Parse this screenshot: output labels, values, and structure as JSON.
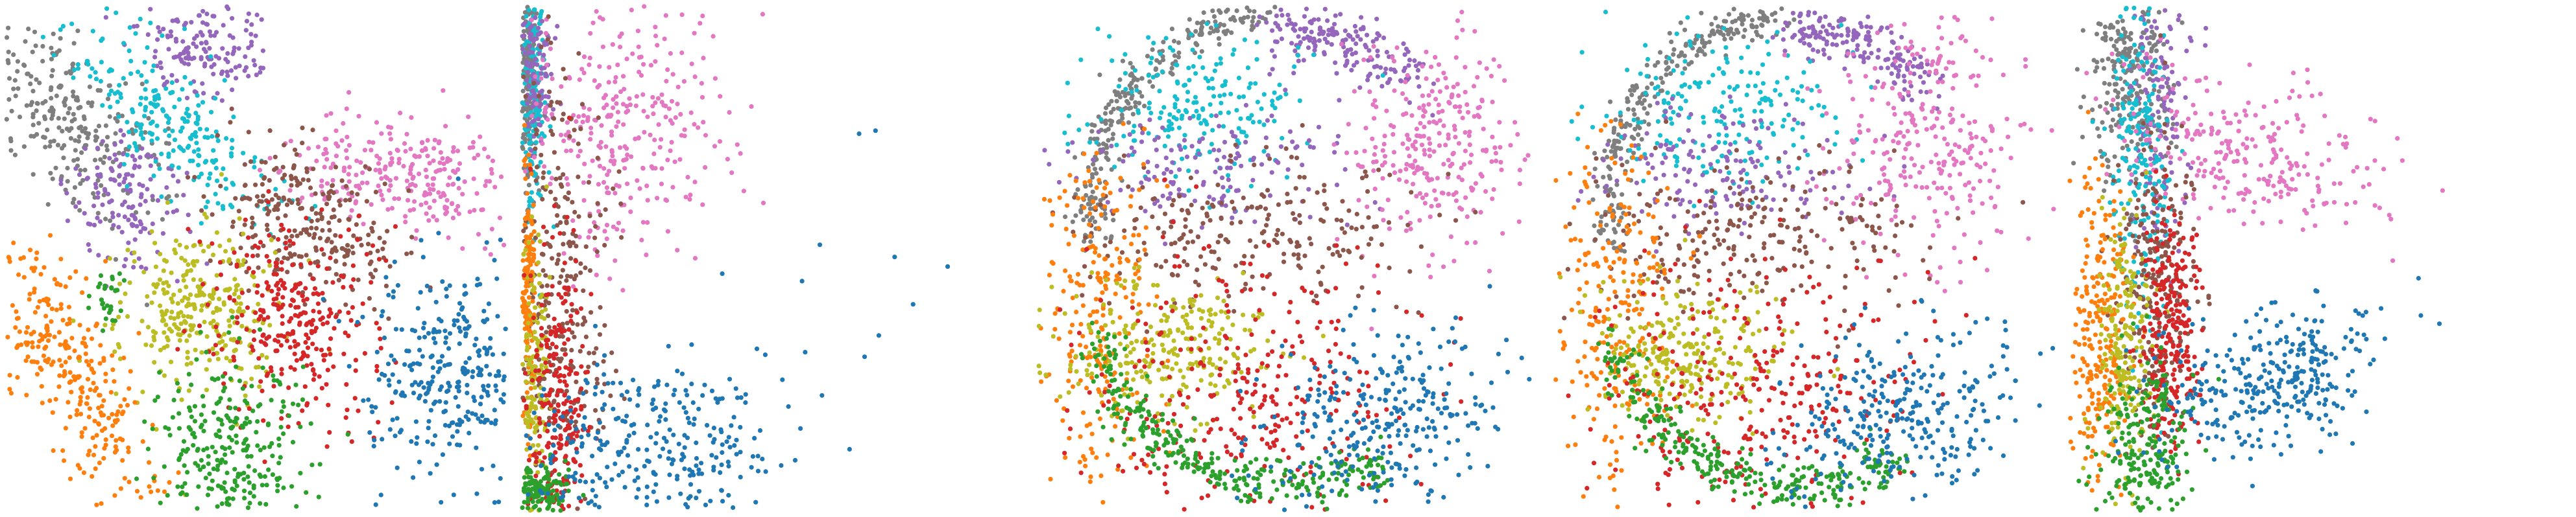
{
  "chart_data": [
    {
      "type": "scatter",
      "title": "",
      "xlabel": "",
      "ylabel": "",
      "axes_visible": false,
      "legend": "none",
      "xlim": [
        0,
        100
      ],
      "ylim": [
        0,
        100
      ],
      "clusters": [
        {
          "color": "#7f7f7f",
          "count": 260,
          "shape": "ellipse",
          "center": [
            14,
            76
          ],
          "spread": [
            6,
            12
          ],
          "angle": 40
        },
        {
          "color": "#9467bd",
          "count": 160,
          "shape": "ellipse",
          "center": [
            39,
            92
          ],
          "spread": [
            6,
            5
          ],
          "angle": 0
        },
        {
          "color": "#9467bd",
          "count": 140,
          "shape": "ellipse",
          "center": [
            24,
            62
          ],
          "spread": [
            6,
            7
          ],
          "angle": 0
        },
        {
          "color": "#17becf",
          "count": 240,
          "shape": "ellipse",
          "center": [
            33,
            76
          ],
          "spread": [
            5,
            13
          ],
          "angle": 45
        },
        {
          "color": "#e377c2",
          "count": 280,
          "shape": "ellipse",
          "center": [
            82,
            67
          ],
          "spread": [
            11,
            6
          ],
          "angle": -8
        },
        {
          "color": "#8c564b",
          "count": 260,
          "shape": "ellipse",
          "center": [
            60,
            58
          ],
          "spread": [
            10,
            7
          ],
          "angle": -30
        },
        {
          "color": "#bcbd22",
          "count": 300,
          "shape": "ellipse",
          "center": [
            38,
            40
          ],
          "spread": [
            8,
            9
          ],
          "angle": 0
        },
        {
          "color": "#d62728",
          "count": 300,
          "shape": "ellipse",
          "center": [
            58,
            38
          ],
          "spread": [
            8,
            10
          ],
          "angle": 0
        },
        {
          "color": "#ff7f0e",
          "count": 300,
          "shape": "ellipse",
          "center": [
            13,
            28
          ],
          "spread": [
            5,
            15
          ],
          "angle": 30
        },
        {
          "color": "#2ca02c",
          "count": 280,
          "shape": "ellipse",
          "center": [
            45,
            12
          ],
          "spread": [
            8,
            9
          ],
          "angle": 0
        },
        {
          "color": "#2ca02c",
          "count": 30,
          "shape": "ellipse",
          "center": [
            20,
            42
          ],
          "spread": [
            2,
            3
          ],
          "angle": 0
        },
        {
          "color": "#1f77b4",
          "count": 300,
          "shape": "ellipse",
          "center": [
            88,
            28
          ],
          "spread": [
            8,
            10
          ],
          "angle": 0
        }
      ]
    },
    {
      "type": "scatter",
      "title": "",
      "xlabel": "",
      "ylabel": "",
      "axes_visible": false,
      "legend": "none",
      "xlim": [
        0,
        100
      ],
      "ylim": [
        0,
        100
      ],
      "clusters": [
        {
          "color": "#7f7f7f",
          "count": 220,
          "shape": "ellipse",
          "center": [
            1.3,
            86
          ],
          "spread": [
            0.8,
            12
          ],
          "angle": 0
        },
        {
          "color": "#17becf",
          "count": 160,
          "shape": "ellipse",
          "center": [
            2.2,
            82
          ],
          "spread": [
            1.2,
            14
          ],
          "angle": 0
        },
        {
          "color": "#9467bd",
          "count": 120,
          "shape": "ellipse",
          "center": [
            3,
            88
          ],
          "spread": [
            1.8,
            8
          ],
          "angle": 0
        },
        {
          "color": "#e377c2",
          "count": 320,
          "shape": "ellipse",
          "center": [
            20,
            78
          ],
          "spread": [
            10,
            14
          ],
          "angle": 0
        },
        {
          "color": "#8c564b",
          "count": 280,
          "shape": "ellipse",
          "center": [
            8,
            45
          ],
          "spread": [
            5,
            22
          ],
          "angle": 0
        },
        {
          "color": "#ff7f0e",
          "count": 160,
          "shape": "ellipse",
          "center": [
            1.2,
            42
          ],
          "spread": [
            0.7,
            14
          ],
          "angle": 0
        },
        {
          "color": "#bcbd22",
          "count": 160,
          "shape": "ellipse",
          "center": [
            2.5,
            25
          ],
          "spread": [
            1.5,
            14
          ],
          "angle": 0
        },
        {
          "color": "#d62728",
          "count": 280,
          "shape": "ellipse",
          "center": [
            7,
            20
          ],
          "spread": [
            3,
            16
          ],
          "angle": 0
        },
        {
          "color": "#2ca02c",
          "count": 160,
          "shape": "ellipse",
          "center": [
            3,
            4
          ],
          "spread": [
            3,
            2.5
          ],
          "angle": 0
        },
        {
          "color": "#1f77b4",
          "count": 320,
          "shape": "ellipse",
          "center": [
            24,
            12
          ],
          "spread": [
            14,
            9
          ],
          "angle": 0
        },
        {
          "color": "#1f77b4",
          "count": 12,
          "shape": "ellipse",
          "center": [
            62,
            38
          ],
          "spread": [
            18,
            18
          ],
          "angle": 0
        }
      ]
    },
    {
      "type": "scatter",
      "title": "",
      "xlabel": "",
      "ylabel": "",
      "axes_visible": false,
      "legend": "none",
      "xlim": [
        0,
        100
      ],
      "ylim": [
        0,
        100
      ],
      "clusters": [
        {
          "color": "#7f7f7f",
          "count": 260,
          "shape": "arc",
          "center": [
            50,
            60
          ],
          "radius": [
            38,
            40
          ],
          "theta": [
            95,
            190
          ],
          "jitter": 2
        },
        {
          "color": "#9467bd",
          "count": 180,
          "shape": "arc",
          "center": [
            50,
            60
          ],
          "radius": [
            34,
            36
          ],
          "theta": [
            45,
            95
          ],
          "jitter": 2.5
        },
        {
          "color": "#17becf",
          "count": 200,
          "shape": "ellipse",
          "center": [
            32,
            80
          ],
          "spread": [
            12,
            8
          ],
          "angle": 0
        },
        {
          "color": "#9467bd",
          "count": 160,
          "shape": "ellipse",
          "center": [
            33,
            68
          ],
          "spread": [
            14,
            6
          ],
          "angle": 0
        },
        {
          "color": "#e377c2",
          "count": 280,
          "shape": "ellipse",
          "center": [
            77,
            73
          ],
          "spread": [
            9,
            11
          ],
          "angle": 0
        },
        {
          "color": "#8c564b",
          "count": 240,
          "shape": "ellipse",
          "center": [
            40,
            55
          ],
          "spread": [
            17,
            7
          ],
          "angle": 0
        },
        {
          "color": "#ff7f0e",
          "count": 240,
          "shape": "ellipse",
          "center": [
            12,
            38
          ],
          "spread": [
            6,
            18
          ],
          "angle": 0
        },
        {
          "color": "#bcbd22",
          "count": 260,
          "shape": "ellipse",
          "center": [
            26,
            32
          ],
          "spread": [
            10,
            7
          ],
          "angle": 0
        },
        {
          "color": "#d62728",
          "count": 320,
          "shape": "ellipse",
          "center": [
            40,
            24
          ],
          "spread": [
            16,
            13
          ],
          "angle": 0
        },
        {
          "color": "#2ca02c",
          "count": 300,
          "shape": "arc",
          "center": [
            50,
            45
          ],
          "radius": [
            38,
            42
          ],
          "theta": [
            195,
            300
          ],
          "jitter": 2
        },
        {
          "color": "#1f77b4",
          "count": 300,
          "shape": "ellipse",
          "center": [
            69,
            17
          ],
          "spread": [
            12,
            9
          ],
          "angle": 30
        }
      ]
    },
    {
      "type": "scatter",
      "title": "",
      "xlabel": "",
      "ylabel": "",
      "axes_visible": false,
      "legend": "none",
      "xlim": [
        0,
        100
      ],
      "ylim": [
        0,
        100
      ],
      "clusters": [
        {
          "color": "#7f7f7f",
          "count": 260,
          "shape": "arc",
          "center": [
            50,
            60
          ],
          "radius": [
            38,
            40
          ],
          "theta": [
            95,
            190
          ],
          "jitter": 2
        },
        {
          "color": "#9467bd",
          "count": 180,
          "shape": "arc",
          "center": [
            50,
            60
          ],
          "radius": [
            34,
            36
          ],
          "theta": [
            45,
            95
          ],
          "jitter": 2.5
        },
        {
          "color": "#17becf",
          "count": 200,
          "shape": "ellipse",
          "center": [
            32,
            80
          ],
          "spread": [
            12,
            8
          ],
          "angle": 0
        },
        {
          "color": "#9467bd",
          "count": 160,
          "shape": "ellipse",
          "center": [
            33,
            68
          ],
          "spread": [
            14,
            6
          ],
          "angle": 0
        },
        {
          "color": "#e377c2",
          "count": 280,
          "shape": "ellipse",
          "center": [
            75,
            73
          ],
          "spread": [
            10,
            12
          ],
          "angle": 0
        },
        {
          "color": "#8c564b",
          "count": 240,
          "shape": "ellipse",
          "center": [
            40,
            55
          ],
          "spread": [
            17,
            7
          ],
          "angle": 0
        },
        {
          "color": "#ff7f0e",
          "count": 240,
          "shape": "ellipse",
          "center": [
            12,
            38
          ],
          "spread": [
            6,
            18
          ],
          "angle": 0
        },
        {
          "color": "#bcbd22",
          "count": 260,
          "shape": "ellipse",
          "center": [
            26,
            32
          ],
          "spread": [
            10,
            7
          ],
          "angle": 0
        },
        {
          "color": "#d62728",
          "count": 320,
          "shape": "ellipse",
          "center": [
            40,
            24
          ],
          "spread": [
            16,
            13
          ],
          "angle": 0
        },
        {
          "color": "#2ca02c",
          "count": 300,
          "shape": "arc",
          "center": [
            50,
            45
          ],
          "radius": [
            38,
            42
          ],
          "theta": [
            195,
            300
          ],
          "jitter": 2
        },
        {
          "color": "#1f77b4",
          "count": 300,
          "shape": "ellipse",
          "center": [
            70,
            18
          ],
          "spread": [
            12,
            9
          ],
          "angle": 30
        }
      ]
    },
    {
      "type": "scatter",
      "title": "",
      "xlabel": "",
      "ylabel": "",
      "axes_visible": false,
      "legend": "none",
      "xlim": [
        0,
        100
      ],
      "ylim": [
        0,
        100
      ],
      "clusters": [
        {
          "color": "#7f7f7f",
          "count": 240,
          "shape": "ellipse",
          "center": [
            12,
            86
          ],
          "spread": [
            4,
            10
          ],
          "angle": 0
        },
        {
          "color": "#9467bd",
          "count": 160,
          "shape": "ellipse",
          "center": [
            18,
            80
          ],
          "spread": [
            3,
            14
          ],
          "angle": 0
        },
        {
          "color": "#17becf",
          "count": 220,
          "shape": "ellipse",
          "center": [
            14,
            72
          ],
          "spread": [
            3,
            18
          ],
          "angle": 0
        },
        {
          "color": "#e377c2",
          "count": 260,
          "shape": "ellipse",
          "center": [
            35,
            72
          ],
          "spread": [
            14,
            7
          ],
          "angle": -15
        },
        {
          "color": "#8c564b",
          "count": 240,
          "shape": "ellipse",
          "center": [
            18,
            45
          ],
          "spread": [
            4,
            16
          ],
          "angle": 0
        },
        {
          "color": "#ff7f0e",
          "count": 260,
          "shape": "ellipse",
          "center": [
            6,
            34
          ],
          "spread": [
            3,
            16
          ],
          "angle": 0
        },
        {
          "color": "#bcbd22",
          "count": 200,
          "shape": "ellipse",
          "center": [
            11,
            35
          ],
          "spread": [
            3,
            12
          ],
          "angle": 0
        },
        {
          "color": "#d62728",
          "count": 260,
          "shape": "ellipse",
          "center": [
            20,
            35
          ],
          "spread": [
            3,
            12
          ],
          "angle": 0
        },
        {
          "color": "#2ca02c",
          "count": 240,
          "shape": "ellipse",
          "center": [
            15,
            12
          ],
          "spread": [
            5,
            9
          ],
          "angle": 0
        },
        {
          "color": "#1f77b4",
          "count": 320,
          "shape": "ellipse",
          "center": [
            40,
            26
          ],
          "spread": [
            12,
            7
          ],
          "angle": 20
        }
      ]
    }
  ]
}
